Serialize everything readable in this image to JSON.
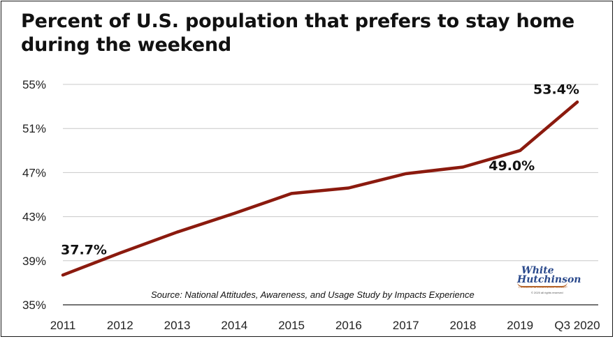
{
  "title": "Percent of U.S. population that prefers to stay home during the weekend",
  "source": "Source: National Attitudes, Awareness, and Usage Study by Impacts Experience",
  "logo": {
    "line1": "White",
    "line2": "Hutchinson",
    "tagline": "LEISURE & LEARNING GROUP",
    "rights": "© 2020 all rights reserved"
  },
  "colors": {
    "line": "#8b1a0e",
    "grid": "#c8c8c8",
    "text": "#111111"
  },
  "chart_data": {
    "type": "line",
    "title": "Percent of U.S. population that prefers to stay home during the weekend",
    "categories": [
      "2011",
      "2012",
      "2013",
      "2014",
      "2015",
      "2016",
      "2017",
      "2018",
      "2019",
      "Q3 2020"
    ],
    "series": [
      {
        "values": [
          37.7,
          39.7,
          41.6,
          43.3,
          45.1,
          45.6,
          46.9,
          47.5,
          49.0,
          53.4
        ]
      }
    ],
    "y_ticks": [
      35,
      39,
      43,
      47,
      51,
      55
    ],
    "y_tick_labels": [
      "35%",
      "39%",
      "43%",
      "47%",
      "51%",
      "55%"
    ],
    "ylim": [
      35,
      55
    ],
    "grid": "horizontal",
    "data_labels": [
      {
        "index": 0,
        "text": "37.7%"
      },
      {
        "index": 8,
        "text": "49.0%"
      },
      {
        "index": 9,
        "text": "53.4%"
      }
    ]
  }
}
